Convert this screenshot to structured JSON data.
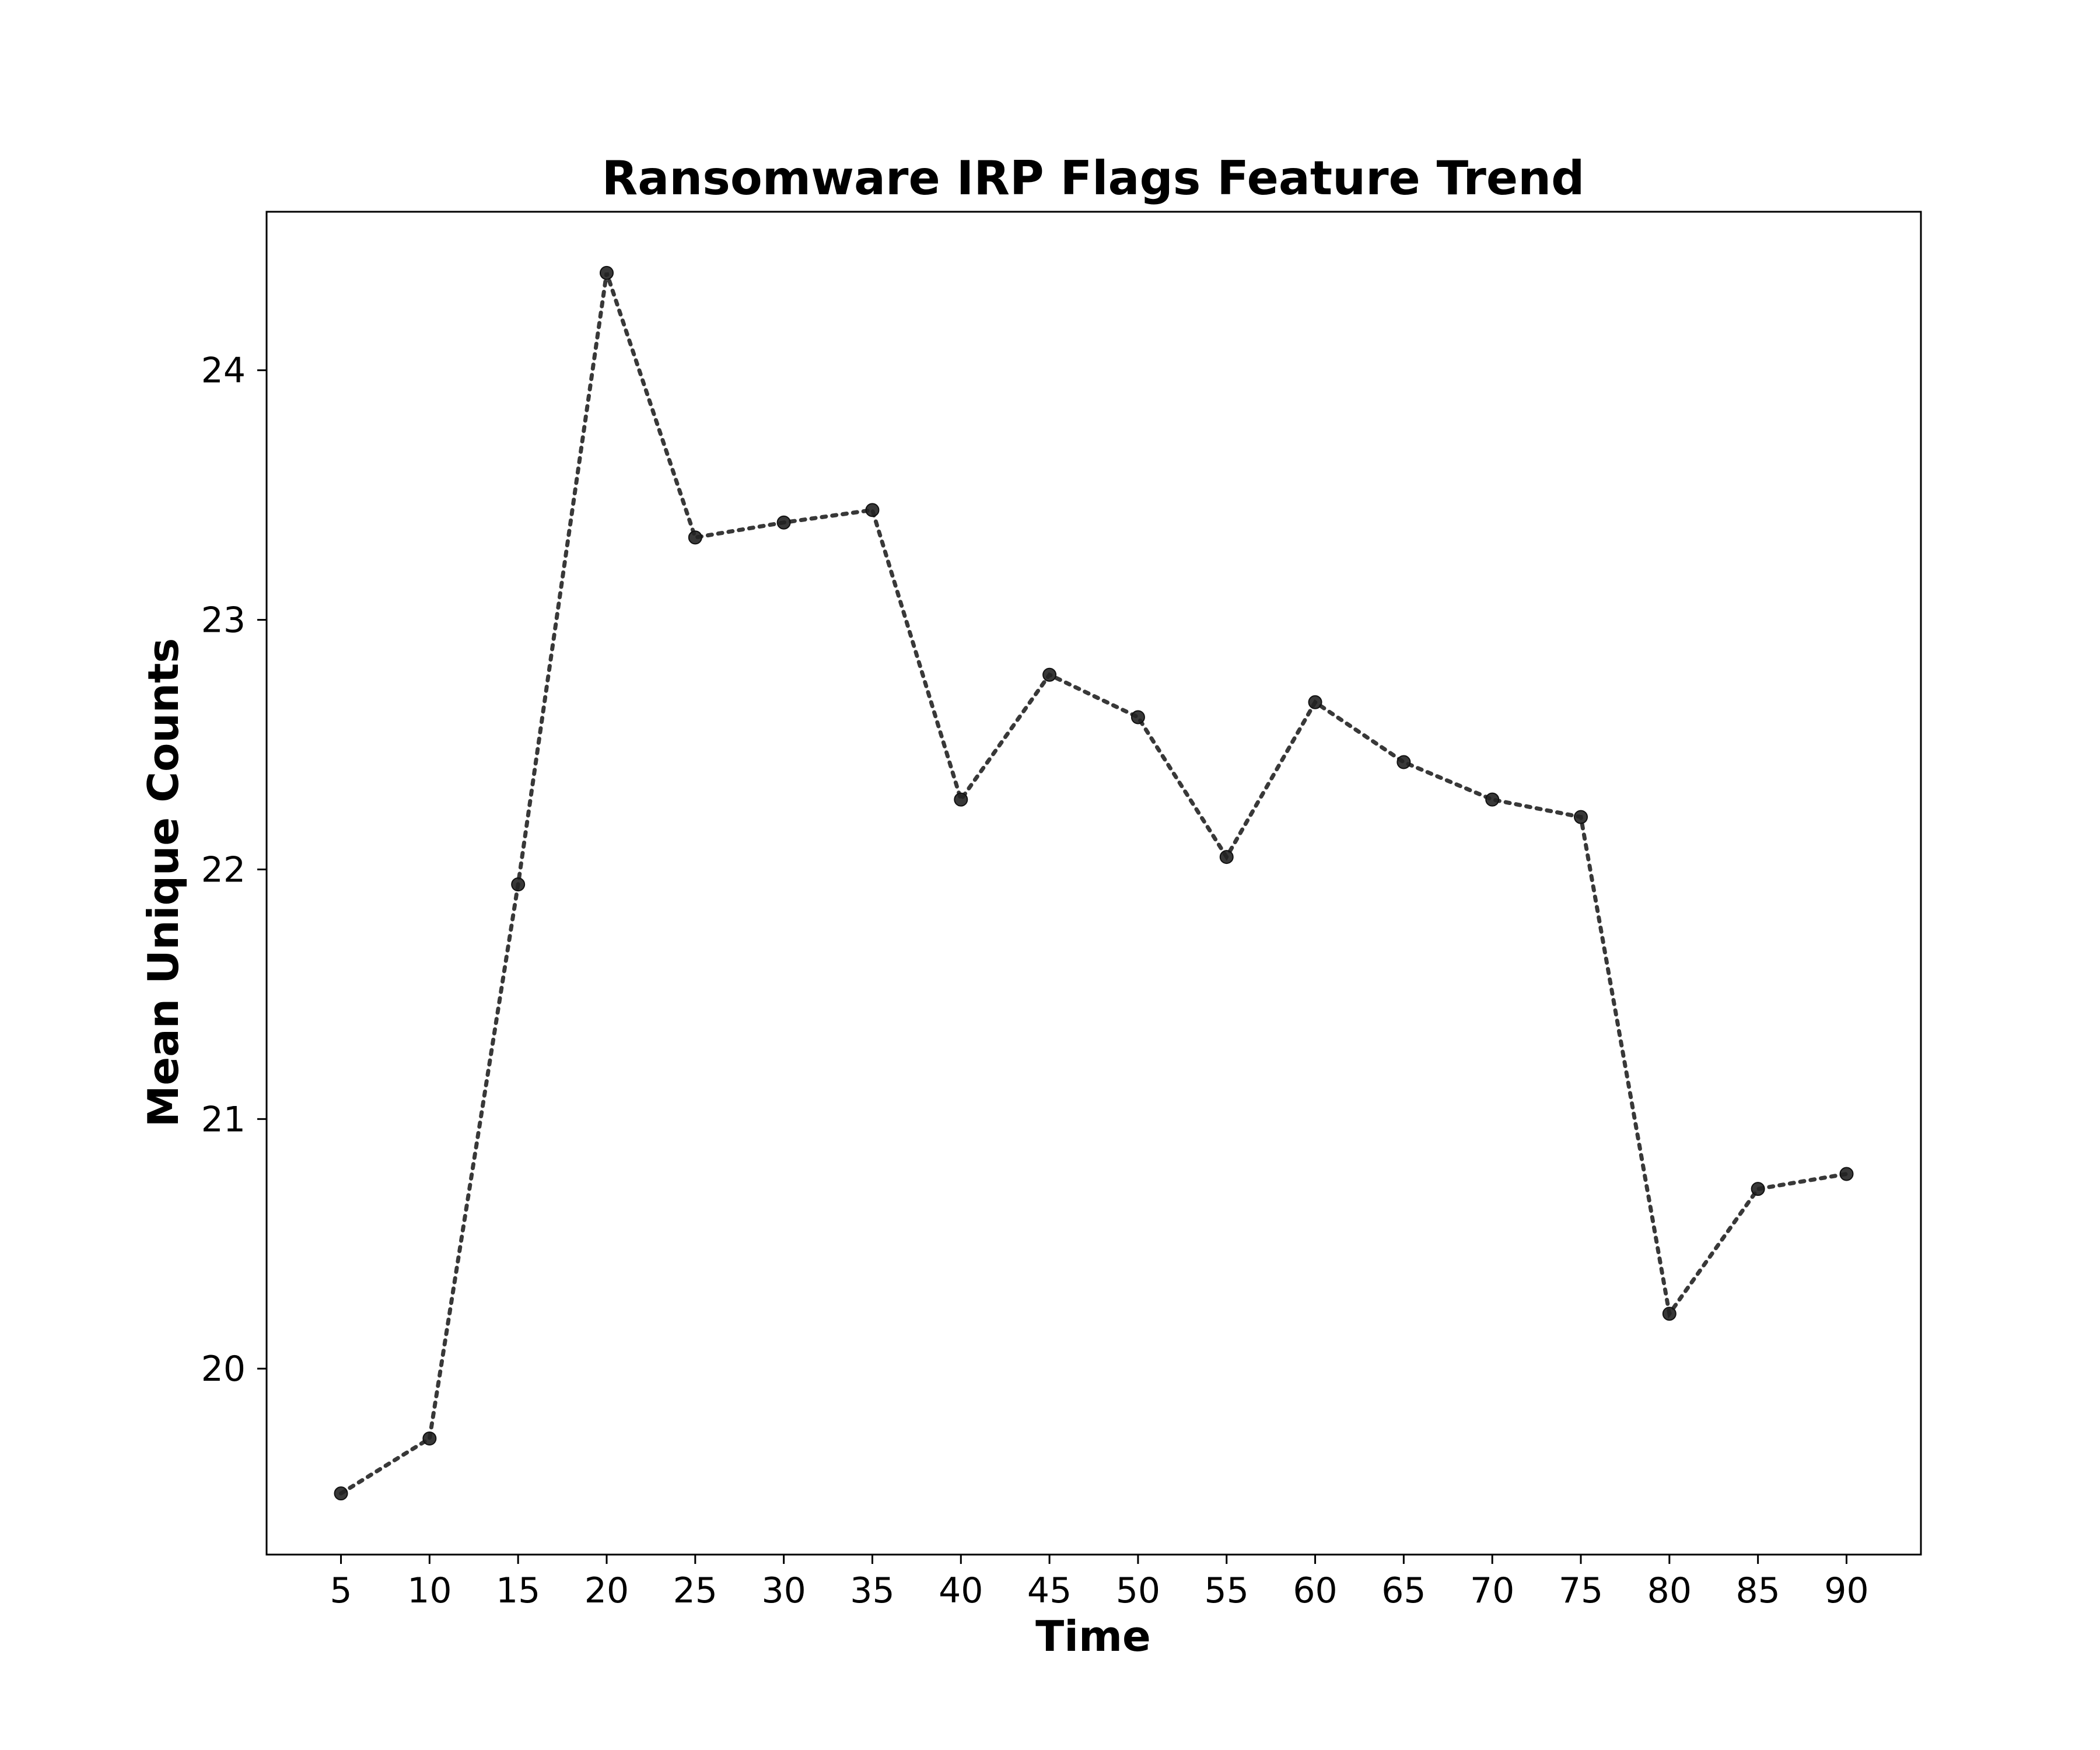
{
  "chart_data": {
    "type": "line",
    "title": "Ransomware IRP Flags Feature Trend",
    "xlabel": "Time",
    "ylabel": "Mean Unique Counts",
    "x": [
      5,
      10,
      15,
      20,
      25,
      30,
      35,
      40,
      45,
      50,
      55,
      60,
      65,
      70,
      75,
      80,
      85,
      90
    ],
    "series": [
      {
        "values": [
          19.5,
          19.72,
          21.94,
          24.39,
          23.33,
          23.39,
          23.44,
          22.28,
          22.78,
          22.61,
          22.05,
          22.67,
          22.43,
          22.28,
          22.21,
          20.22,
          20.72,
          20.78
        ]
      }
    ],
    "xticks": [
      "5",
      "10",
      "15",
      "20",
      "25",
      "30",
      "35",
      "40",
      "45",
      "50",
      "55",
      "60",
      "65",
      "70",
      "75",
      "80",
      "85",
      "90"
    ],
    "yticks": [
      "20",
      "21",
      "22",
      "23",
      "24"
    ],
    "xlim": [
      0.8,
      94.2
    ],
    "ylim": [
      19.255,
      24.635
    ],
    "grid": false,
    "line_style": "dotted",
    "marker": "circle",
    "color": "#222222"
  }
}
